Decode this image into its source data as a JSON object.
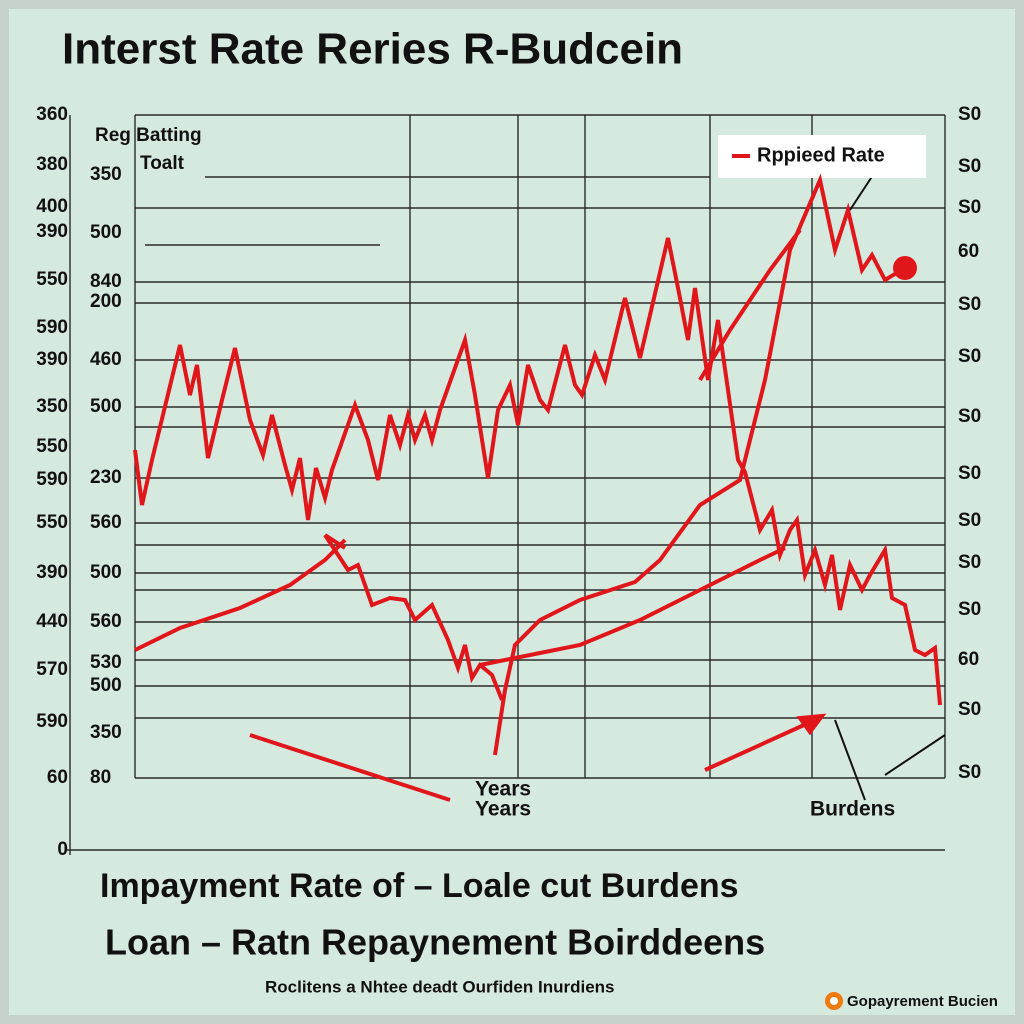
{
  "chart_data": {
    "type": "line",
    "title": "Interst Rate Reries R-Budcein",
    "xlim": [
      0,
      810
    ],
    "ylim": [
      0,
      735
    ],
    "left_labels_outer": [
      "360",
      "380",
      "400",
      "390",
      "550",
      "590",
      "390",
      "350",
      "550",
      "590",
      "550",
      "390",
      "440",
      "570",
      "590",
      "60",
      "0"
    ],
    "left_labels_inner": [
      "350",
      "500",
      "840",
      "200",
      "460",
      "500",
      "230",
      "560",
      "500",
      "560",
      "530",
      "500",
      "350",
      "80"
    ],
    "right_labels": [
      "S0",
      "S0",
      "S0",
      "60",
      "S0",
      "S0",
      "S0",
      "S0",
      "S0",
      "S0",
      "S0",
      "60",
      "S0",
      "S0"
    ],
    "annotations": [
      "Reg Batting",
      "Toalt",
      "Years",
      "Years",
      "Burdens"
    ],
    "series": [
      {
        "name": "Rppieed Rate",
        "color": "#e0161a",
        "x": [
          0,
          7,
          17,
          45,
          55,
          62,
          73,
          87,
          100,
          115,
          128,
          137,
          150,
          157,
          165,
          173,
          181,
          190,
          197,
          220,
          233,
          243,
          255,
          265,
          273,
          280,
          290,
          297,
          305,
          330,
          340,
          353,
          363,
          375,
          383,
          393,
          405,
          413,
          430,
          440,
          447,
          460,
          470,
          490,
          505,
          533,
          545,
          553,
          560,
          573,
          583,
          603,
          610,
          625,
          637,
          645,
          655,
          662,
          670,
          680,
          690,
          697,
          705,
          715,
          727,
          735,
          750,
          757,
          770,
          780,
          790,
          800,
          805
        ],
        "values": [
          400,
          345,
          390,
          505,
          455,
          485,
          392,
          450,
          502,
          430,
          395,
          435,
          385,
          360,
          392,
          330,
          382,
          352,
          380,
          445,
          410,
          370,
          435,
          405,
          435,
          410,
          435,
          410,
          440,
          510,
          455,
          372,
          440,
          465,
          425,
          485,
          450,
          440,
          505,
          465,
          455,
          495,
          470,
          552,
          492,
          612,
          552,
          510,
          562,
          470,
          530,
          390,
          378,
          320,
          340,
          295,
          320,
          330,
          275,
          300,
          265,
          295,
          240,
          285,
          260,
          275,
          300,
          252,
          245,
          200,
          195,
          202,
          145
        ]
      },
      {
        "color": "#e0161a",
        "x": [
          190,
          213,
          223,
          237,
          255,
          270,
          280,
          297,
          313,
          323,
          330,
          337,
          345,
          357,
          367
        ],
        "values": [
          315,
          280,
          285,
          245,
          252,
          250,
          230,
          245,
          210,
          182,
          205,
          172,
          185,
          175,
          150
        ]
      },
      {
        "color": "#e0161a",
        "x": [
          0,
          45,
          105,
          155,
          190,
          210
        ],
        "values": [
          200,
          222,
          242,
          265,
          290,
          310
        ]
      },
      {
        "color": "#e0161a",
        "x": [
          360,
          370,
          380,
          405,
          445,
          500,
          525,
          565,
          605,
          630,
          655,
          685,
          700,
          713,
          727,
          737,
          750,
          770
        ],
        "values": [
          95,
          160,
          205,
          230,
          250,
          268,
          290,
          345,
          370,
          470,
          600,
          670,
          600,
          640,
          580,
          595,
          570,
          582
        ]
      },
      {
        "color": "#e0161a",
        "x": [
          345,
          395,
          445,
          505,
          565,
          625,
          650
        ],
        "values": [
          185,
          195,
          205,
          230,
          260,
          290,
          302
        ]
      },
      {
        "color": "#e0161a",
        "x": [
          565,
          595,
          635,
          665
        ],
        "values": [
          470,
          520,
          580,
          620
        ]
      }
    ],
    "legend": "top-right",
    "footer": [
      "Impayment Rate   of  –  Loale cut Burdens",
      "Loan  –  Ratn Repaynement Boirddeens",
      "Roclitens a Nhtee deadt Ourfiden Inurdiens"
    ],
    "badge": "Gopayrement Bucien"
  }
}
